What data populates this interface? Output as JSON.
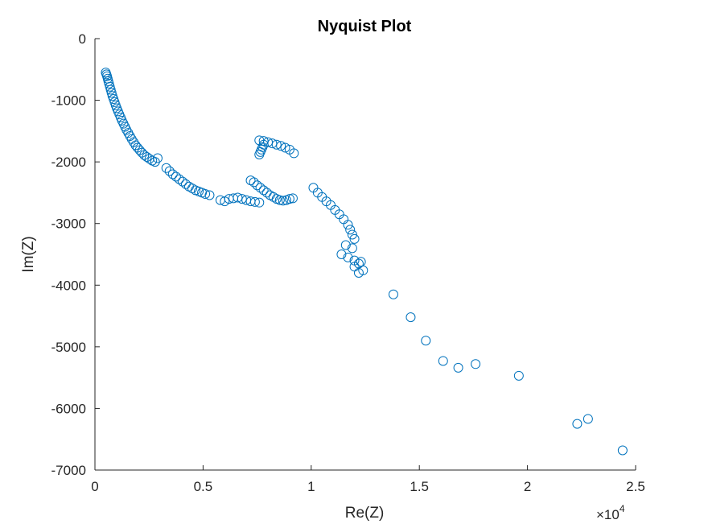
{
  "chart_data": {
    "type": "scatter",
    "title": "Nyquist Plot",
    "xlabel": "Re(Z)",
    "ylabel": "Im(Z)",
    "xlim": [
      0,
      25000
    ],
    "ylim": [
      -7000,
      0
    ],
    "x_ticks": [
      0,
      5000,
      10000,
      15000,
      20000,
      25000
    ],
    "x_tick_labels": [
      "0",
      "0.5",
      "1",
      "1.5",
      "2",
      "2.5"
    ],
    "y_ticks": [
      0,
      -1000,
      -2000,
      -3000,
      -4000,
      -5000,
      -6000,
      -7000
    ],
    "y_tick_labels": [
      "0",
      "-1000",
      "-2000",
      "-3000",
      "-4000",
      "-5000",
      "-6000",
      "-7000"
    ],
    "x_multiplier": {
      "base": "×10",
      "exponent": "4"
    },
    "marker": "open-circle",
    "grid": false,
    "legend": "none",
    "color": "#0072BD",
    "series": [
      {
        "points": [
          [
            500,
            -550
          ],
          [
            530,
            -580
          ],
          [
            560,
            -610
          ],
          [
            590,
            -650
          ],
          [
            620,
            -690
          ],
          [
            650,
            -730
          ],
          [
            690,
            -780
          ],
          [
            730,
            -830
          ],
          [
            770,
            -880
          ],
          [
            810,
            -930
          ],
          [
            860,
            -980
          ],
          [
            910,
            -1030
          ],
          [
            960,
            -1080
          ],
          [
            1010,
            -1130
          ],
          [
            1070,
            -1180
          ],
          [
            1130,
            -1230
          ],
          [
            1190,
            -1280
          ],
          [
            1250,
            -1330
          ],
          [
            1320,
            -1380
          ],
          [
            1390,
            -1430
          ],
          [
            1460,
            -1480
          ],
          [
            1540,
            -1530
          ],
          [
            1620,
            -1580
          ],
          [
            1700,
            -1630
          ],
          [
            1790,
            -1680
          ],
          [
            1880,
            -1730
          ],
          [
            1970,
            -1770
          ],
          [
            2070,
            -1810
          ],
          [
            2170,
            -1850
          ],
          [
            2280,
            -1890
          ],
          [
            2400,
            -1920
          ],
          [
            2520,
            -1950
          ],
          [
            2650,
            -1980
          ],
          [
            2780,
            -2000
          ],
          [
            2900,
            -1940
          ],
          [
            3300,
            -2100
          ],
          [
            3450,
            -2150
          ],
          [
            3600,
            -2200
          ],
          [
            3750,
            -2240
          ],
          [
            3900,
            -2280
          ],
          [
            4050,
            -2320
          ],
          [
            4200,
            -2360
          ],
          [
            4350,
            -2400
          ],
          [
            4500,
            -2430
          ],
          [
            4650,
            -2460
          ],
          [
            4800,
            -2480
          ],
          [
            4950,
            -2500
          ],
          [
            5100,
            -2520
          ],
          [
            5300,
            -2540
          ],
          [
            5800,
            -2620
          ],
          [
            6000,
            -2640
          ],
          [
            6200,
            -2600
          ],
          [
            6400,
            -2590
          ],
          [
            6600,
            -2580
          ],
          [
            6800,
            -2600
          ],
          [
            7000,
            -2620
          ],
          [
            7200,
            -2640
          ],
          [
            7400,
            -2650
          ],
          [
            7600,
            -2660
          ],
          [
            7200,
            -2300
          ],
          [
            7350,
            -2330
          ],
          [
            7500,
            -2380
          ],
          [
            7650,
            -2420
          ],
          [
            7800,
            -2460
          ],
          [
            7950,
            -2500
          ],
          [
            8100,
            -2540
          ],
          [
            8250,
            -2570
          ],
          [
            8400,
            -2600
          ],
          [
            8550,
            -2620
          ],
          [
            8700,
            -2630
          ],
          [
            8850,
            -2620
          ],
          [
            9000,
            -2600
          ],
          [
            9150,
            -2590
          ],
          [
            7600,
            -1650
          ],
          [
            7800,
            -1660
          ],
          [
            8000,
            -1680
          ],
          [
            8200,
            -1700
          ],
          [
            8400,
            -1720
          ],
          [
            8600,
            -1740
          ],
          [
            8800,
            -1770
          ],
          [
            9000,
            -1800
          ],
          [
            9200,
            -1860
          ],
          [
            7600,
            -1880
          ],
          [
            7650,
            -1840
          ],
          [
            7700,
            -1800
          ],
          [
            7750,
            -1760
          ],
          [
            7800,
            -1720
          ],
          [
            10100,
            -2420
          ],
          [
            10300,
            -2500
          ],
          [
            10500,
            -2570
          ],
          [
            10700,
            -2640
          ],
          [
            10900,
            -2700
          ],
          [
            11100,
            -2780
          ],
          [
            11300,
            -2850
          ],
          [
            11500,
            -2930
          ],
          [
            11700,
            -3020
          ],
          [
            11800,
            -3100
          ],
          [
            11900,
            -3180
          ],
          [
            12000,
            -3250
          ],
          [
            11600,
            -3350
          ],
          [
            11900,
            -3400
          ],
          [
            11400,
            -3500
          ],
          [
            11700,
            -3550
          ],
          [
            12000,
            -3600
          ],
          [
            12200,
            -3650
          ],
          [
            12000,
            -3700
          ],
          [
            12200,
            -3800
          ],
          [
            12400,
            -3760
          ],
          [
            12300,
            -3620
          ],
          [
            13800,
            -4150
          ],
          [
            14600,
            -4520
          ],
          [
            15300,
            -4900
          ],
          [
            16100,
            -5230
          ],
          [
            16800,
            -5340
          ],
          [
            17600,
            -5280
          ],
          [
            19600,
            -5470
          ],
          [
            22300,
            -6250
          ],
          [
            22800,
            -6170
          ],
          [
            24400,
            -6680
          ]
        ]
      }
    ]
  }
}
